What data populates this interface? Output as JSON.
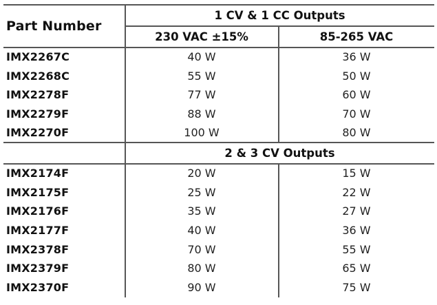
{
  "table": {
    "part_header": "Part Number",
    "group1_header": "1 CV & 1 CC Outputs",
    "col_headers": [
      "230 VAC ±15%",
      "85-265 VAC"
    ],
    "group1_rows": [
      {
        "part": "IMX2267C",
        "v230": "40 W",
        "v85": "36 W"
      },
      {
        "part": "IMX2268C",
        "v230": "55 W",
        "v85": "50 W"
      },
      {
        "part": "IMX2278F",
        "v230": "77 W",
        "v85": "60 W"
      },
      {
        "part": "IMX2279F",
        "v230": "88 W",
        "v85": "70 W"
      },
      {
        "part": "IMX2270F",
        "v230": "100 W",
        "v85": "80 W"
      }
    ],
    "group2_header": "2 & 3 CV Outputs",
    "group2_rows": [
      {
        "part": "IMX2174F",
        "v230": "20 W",
        "v85": "15 W"
      },
      {
        "part": "IMX2175F",
        "v230": "25 W",
        "v85": "22 W"
      },
      {
        "part": "IMX2176F",
        "v230": "35 W",
        "v85": "27 W"
      },
      {
        "part": "IMX2177F",
        "v230": "40 W",
        "v85": "36 W"
      },
      {
        "part": "IMX2378F",
        "v230": "70 W",
        "v85": "55 W"
      },
      {
        "part": "IMX2379F",
        "v230": "80 W",
        "v85": "65 W"
      },
      {
        "part": "IMX2370F",
        "v230": "90 W",
        "v85": "75 W"
      }
    ]
  }
}
